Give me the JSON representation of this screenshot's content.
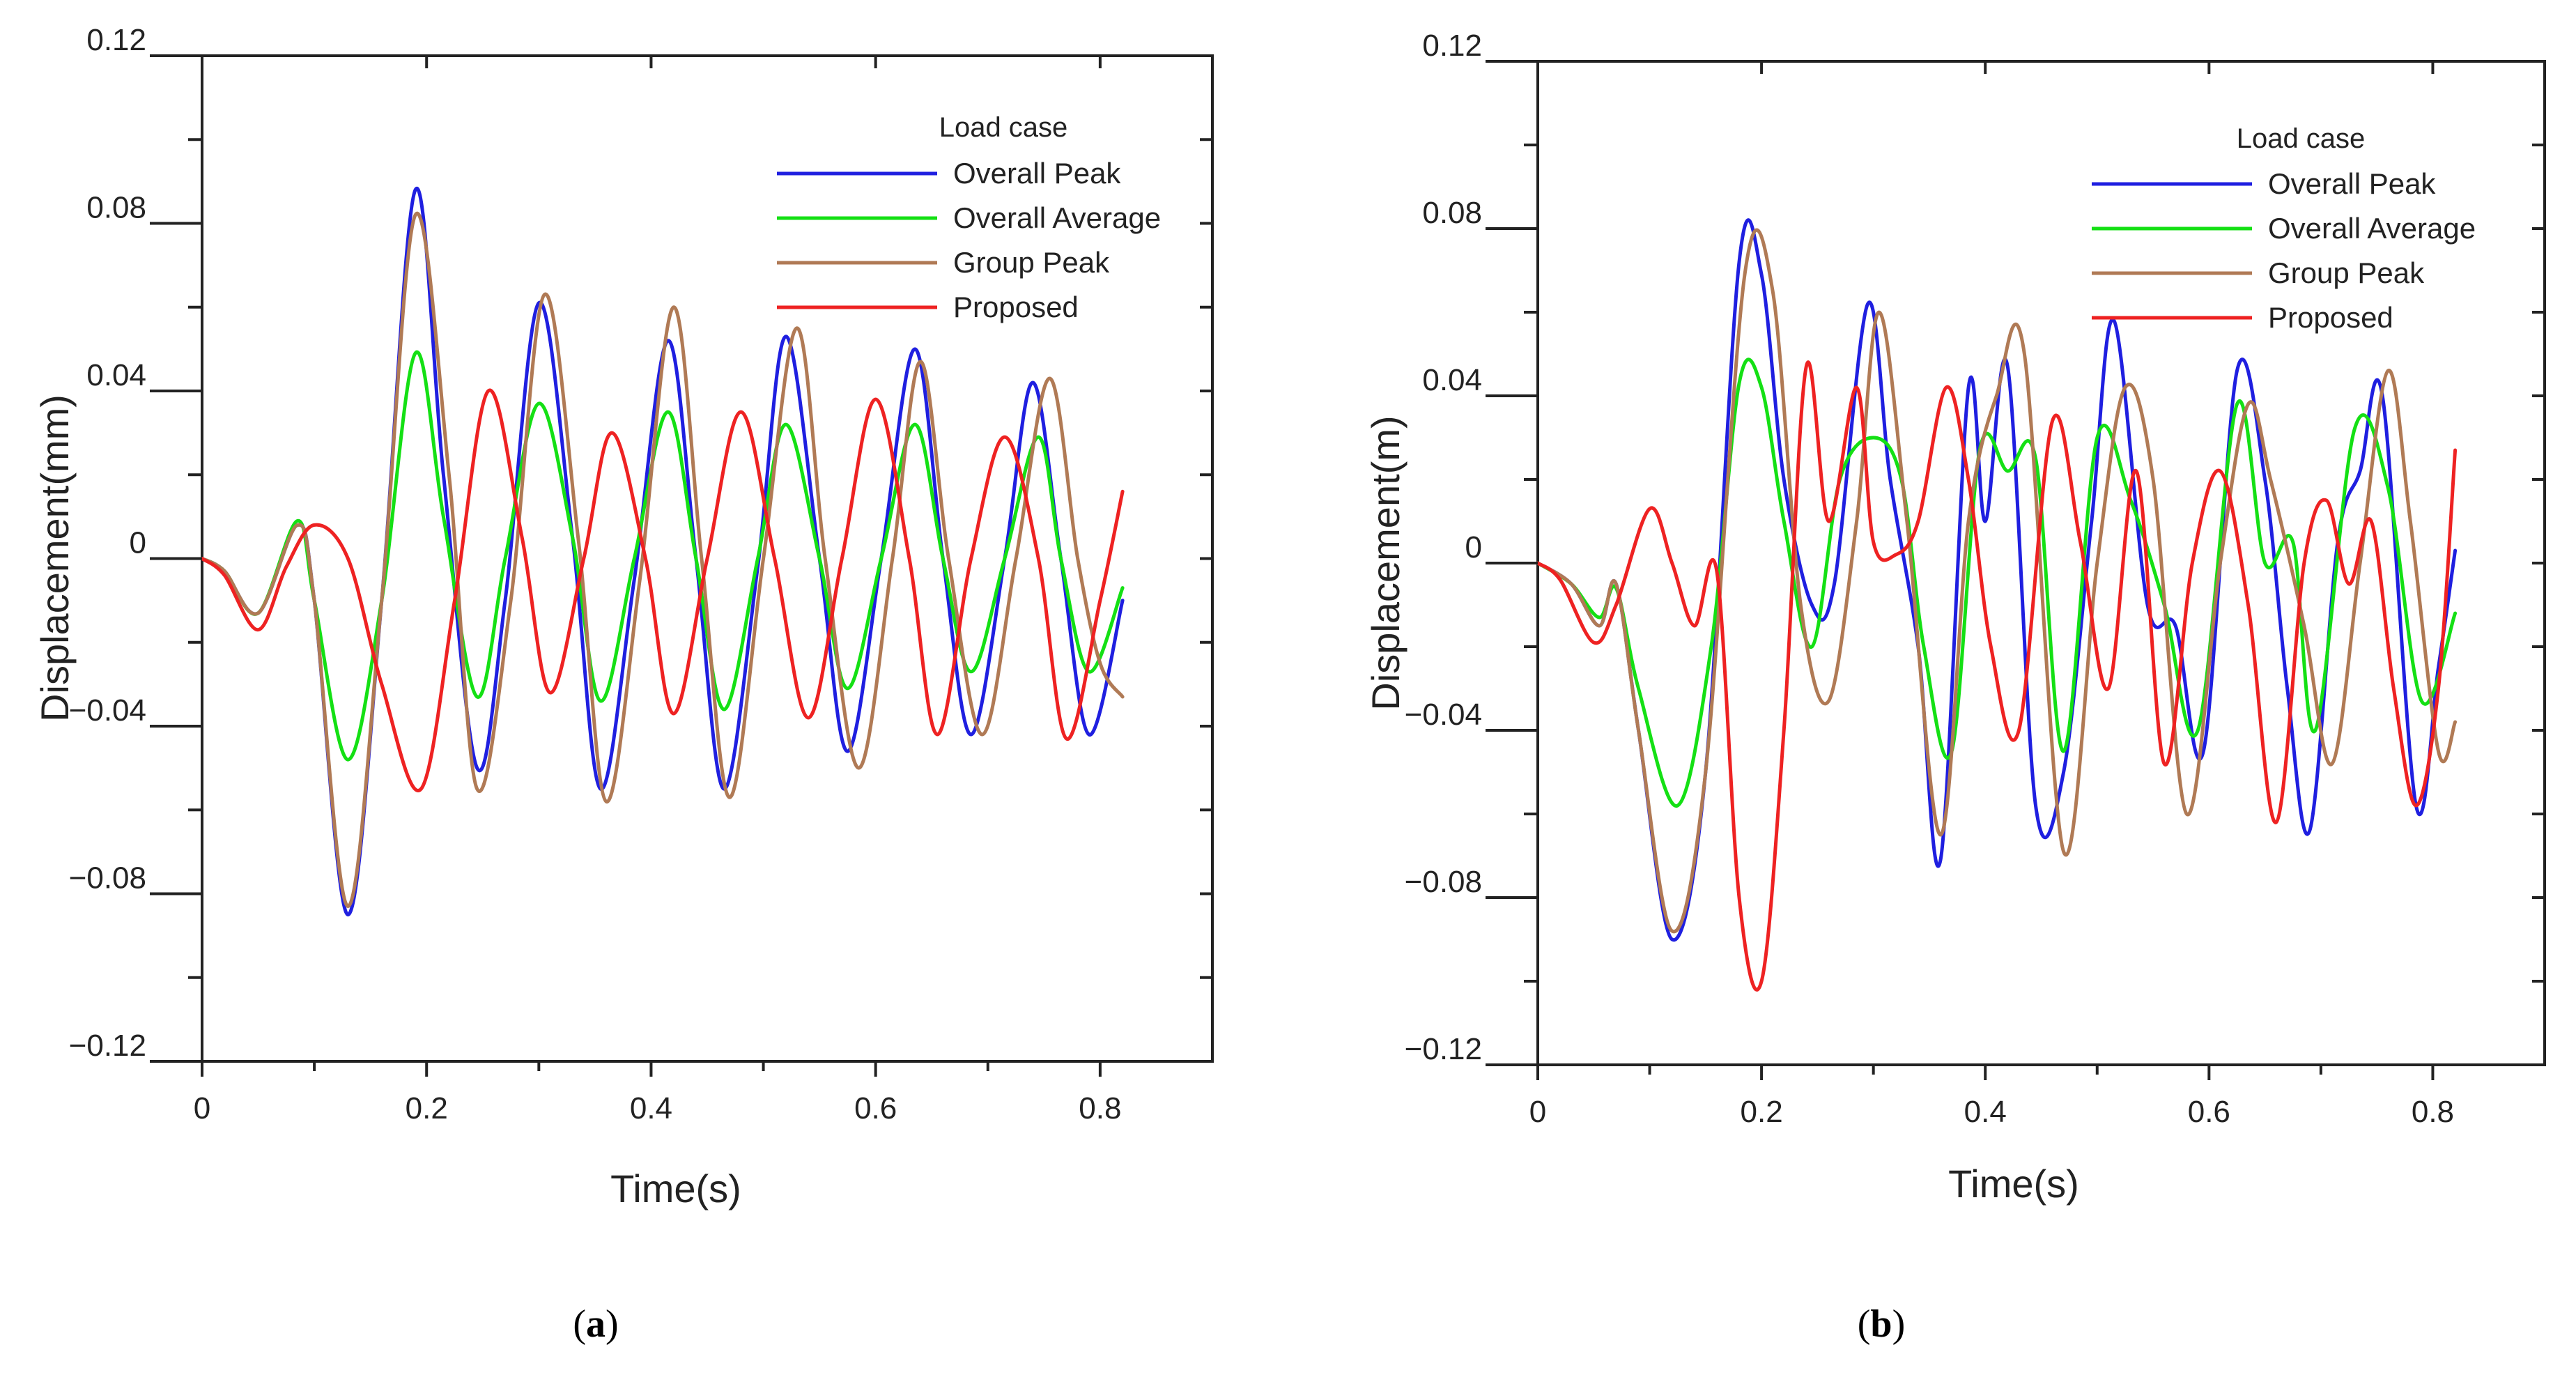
{
  "colors": {
    "Overall Peak": "#1f1fe0",
    "Overall Average": "#14e014",
    "Group Peak": "#b07a55",
    "Proposed": "#ee2222",
    "axis": "#222222"
  },
  "chart_data": [
    {
      "type": "line",
      "panel": "a",
      "caption": "a",
      "xlabel": "Time(s)",
      "ylabel": "Displacement(mm)",
      "xlim": [
        0,
        0.9
      ],
      "ylim": [
        -0.12,
        0.12
      ],
      "xticks": [
        0,
        0.2,
        0.4,
        0.6,
        0.8
      ],
      "xtick_labels": [
        "0",
        "0.2",
        "0.4",
        "0.6",
        "0.8"
      ],
      "yticks": [
        0.12,
        0.08,
        0.04,
        0,
        -0.04,
        -0.08,
        -0.12
      ],
      "ytick_labels": [
        "0.12",
        "0.08",
        "0.04",
        "0",
        "−0.04",
        "−0.08",
        "−0.12"
      ],
      "legend_title": "Load case",
      "legend_position": "top-right",
      "series": [
        {
          "name": "Overall Peak",
          "x": [
            0,
            0.02,
            0.05,
            0.085,
            0.1,
            0.13,
            0.16,
            0.19,
            0.215,
            0.245,
            0.27,
            0.3,
            0.33,
            0.355,
            0.385,
            0.415,
            0.44,
            0.465,
            0.495,
            0.52,
            0.55,
            0.575,
            0.605,
            0.635,
            0.66,
            0.685,
            0.715,
            0.74,
            0.765,
            0.79,
            0.82
          ],
          "y": [
            0,
            -0.003,
            -0.013,
            0.008,
            -0.01,
            -0.085,
            -0.01,
            0.088,
            0.02,
            -0.05,
            -0.01,
            0.061,
            0.005,
            -0.055,
            -0.005,
            0.052,
            0.0,
            -0.055,
            -0.002,
            0.053,
            0.0,
            -0.046,
            0.0,
            0.05,
            0.0,
            -0.042,
            0.0,
            0.042,
            0.0,
            -0.042,
            -0.01
          ]
        },
        {
          "name": "Overall Average",
          "x": [
            0,
            0.02,
            0.05,
            0.085,
            0.1,
            0.13,
            0.16,
            0.19,
            0.215,
            0.245,
            0.27,
            0.3,
            0.33,
            0.355,
            0.385,
            0.415,
            0.44,
            0.465,
            0.495,
            0.52,
            0.55,
            0.575,
            0.605,
            0.635,
            0.66,
            0.685,
            0.715,
            0.745,
            0.765,
            0.79,
            0.82
          ],
          "y": [
            0,
            -0.003,
            -0.013,
            0.009,
            -0.01,
            -0.048,
            -0.01,
            0.049,
            0.01,
            -0.033,
            0.0,
            0.037,
            0.005,
            -0.034,
            0.0,
            0.035,
            0.0,
            -0.036,
            0.0,
            0.032,
            0.0,
            -0.031,
            0.0,
            0.032,
            0.0,
            -0.027,
            0.0,
            0.029,
            0.0,
            -0.027,
            -0.007
          ]
        },
        {
          "name": "Group Peak",
          "x": [
            0,
            0.02,
            0.05,
            0.085,
            0.1,
            0.13,
            0.16,
            0.19,
            0.22,
            0.245,
            0.275,
            0.305,
            0.335,
            0.36,
            0.39,
            0.42,
            0.445,
            0.47,
            0.5,
            0.53,
            0.555,
            0.585,
            0.615,
            0.64,
            0.665,
            0.695,
            0.725,
            0.755,
            0.78,
            0.8,
            0.82
          ],
          "y": [
            0,
            -0.003,
            -0.013,
            0.008,
            -0.01,
            -0.083,
            -0.01,
            0.082,
            0.02,
            -0.055,
            -0.01,
            0.063,
            0.005,
            -0.058,
            -0.005,
            0.06,
            0.0,
            -0.057,
            0.0,
            0.055,
            0.0,
            -0.05,
            0.0,
            0.047,
            0.0,
            -0.042,
            0.0,
            0.043,
            0.0,
            -0.025,
            -0.033
          ]
        },
        {
          "name": "Proposed",
          "x": [
            0,
            0.02,
            0.05,
            0.075,
            0.1,
            0.13,
            0.16,
            0.195,
            0.225,
            0.255,
            0.285,
            0.31,
            0.34,
            0.365,
            0.395,
            0.42,
            0.45,
            0.48,
            0.51,
            0.54,
            0.57,
            0.6,
            0.63,
            0.655,
            0.685,
            0.715,
            0.745,
            0.77,
            0.8,
            0.82
          ],
          "y": [
            0,
            -0.004,
            -0.017,
            -0.002,
            0.008,
            0.0,
            -0.03,
            -0.055,
            -0.01,
            0.04,
            0.005,
            -0.032,
            0.0,
            0.03,
            0.0,
            -0.037,
            0.0,
            0.035,
            0.0,
            -0.038,
            0.0,
            0.038,
            0.0,
            -0.042,
            0.0,
            0.029,
            0.0,
            -0.043,
            -0.01,
            0.016
          ]
        }
      ]
    },
    {
      "type": "line",
      "panel": "b",
      "caption": "b",
      "xlabel": "Time(s)",
      "ylabel": "Displacement(m)",
      "xlim": [
        0,
        0.9
      ],
      "ylim": [
        -0.12,
        0.12
      ],
      "xticks": [
        0,
        0.2,
        0.4,
        0.6,
        0.8
      ],
      "xtick_labels": [
        "0",
        "0.2",
        "0.4",
        "0.6",
        "0.8"
      ],
      "yticks": [
        0.12,
        0.08,
        0.04,
        0,
        -0.04,
        -0.08,
        -0.12
      ],
      "ytick_labels": [
        "0.12",
        "0.08",
        "0.04",
        "0",
        "−0.04",
        "−0.08",
        "−0.12"
      ],
      "legend_title": "Load case",
      "legend_position": "top-right",
      "series": [
        {
          "name": "Overall Peak",
          "x": [
            0,
            0.03,
            0.055,
            0.07,
            0.09,
            0.12,
            0.15,
            0.18,
            0.2,
            0.22,
            0.245,
            0.265,
            0.295,
            0.315,
            0.34,
            0.36,
            0.385,
            0.4,
            0.42,
            0.445,
            0.47,
            0.495,
            0.515,
            0.545,
            0.57,
            0.595,
            0.625,
            0.65,
            0.67,
            0.69,
            0.715,
            0.735,
            0.755,
            0.785,
            0.805,
            0.82
          ],
          "y": [
            0,
            -0.005,
            -0.015,
            -0.005,
            -0.04,
            -0.09,
            -0.05,
            0.072,
            0.069,
            0.02,
            -0.01,
            -0.005,
            0.062,
            0.02,
            -0.02,
            -0.071,
            0.042,
            0.01,
            0.047,
            -0.058,
            -0.05,
            0.01,
            0.058,
            -0.01,
            -0.015,
            -0.045,
            0.046,
            0.02,
            -0.03,
            -0.064,
            0.005,
            0.022,
            0.04,
            -0.058,
            -0.025,
            0.003
          ]
        },
        {
          "name": "Overall Average",
          "x": [
            0,
            0.03,
            0.055,
            0.07,
            0.09,
            0.125,
            0.155,
            0.18,
            0.2,
            0.22,
            0.245,
            0.27,
            0.3,
            0.325,
            0.345,
            0.37,
            0.395,
            0.42,
            0.445,
            0.47,
            0.5,
            0.53,
            0.56,
            0.59,
            0.625,
            0.65,
            0.675,
            0.695,
            0.73,
            0.76,
            0.79,
            0.82
          ],
          "y": [
            0,
            -0.005,
            -0.013,
            -0.006,
            -0.03,
            -0.058,
            -0.02,
            0.043,
            0.042,
            0.01,
            -0.02,
            0.02,
            0.03,
            0.02,
            -0.02,
            -0.045,
            0.027,
            0.022,
            0.025,
            -0.045,
            0.03,
            0.015,
            -0.01,
            -0.04,
            0.038,
            0.0,
            0.005,
            -0.04,
            0.032,
            0.018,
            -0.033,
            -0.012
          ]
        },
        {
          "name": "Group Peak",
          "x": [
            0,
            0.03,
            0.055,
            0.07,
            0.09,
            0.12,
            0.15,
            0.185,
            0.21,
            0.235,
            0.26,
            0.285,
            0.305,
            0.33,
            0.36,
            0.385,
            0.41,
            0.435,
            0.47,
            0.5,
            0.525,
            0.55,
            0.58,
            0.61,
            0.635,
            0.655,
            0.685,
            0.71,
            0.735,
            0.76,
            0.78,
            0.805,
            0.82
          ],
          "y": [
            0,
            -0.005,
            -0.015,
            -0.005,
            -0.04,
            -0.088,
            -0.05,
            0.069,
            0.065,
            -0.01,
            -0.033,
            0.01,
            0.06,
            0.01,
            -0.065,
            0.01,
            0.04,
            0.05,
            -0.069,
            0.0,
            0.042,
            0.02,
            -0.06,
            0.0,
            0.038,
            0.02,
            -0.015,
            -0.048,
            0.0,
            0.046,
            0.01,
            -0.045,
            -0.038
          ]
        },
        {
          "name": "Proposed",
          "x": [
            0,
            0.02,
            0.05,
            0.07,
            0.1,
            0.12,
            0.14,
            0.16,
            0.18,
            0.2,
            0.22,
            0.24,
            0.26,
            0.285,
            0.3,
            0.32,
            0.34,
            0.365,
            0.385,
            0.405,
            0.43,
            0.46,
            0.485,
            0.51,
            0.535,
            0.56,
            0.585,
            0.61,
            0.635,
            0.66,
            0.685,
            0.705,
            0.725,
            0.745,
            0.765,
            0.785,
            0.805,
            0.82
          ],
          "y": [
            0,
            -0.004,
            -0.019,
            -0.01,
            0.013,
            0.0,
            -0.015,
            -0.002,
            -0.08,
            -0.1,
            -0.04,
            0.047,
            0.01,
            0.042,
            0.005,
            0.002,
            0.01,
            0.042,
            0.02,
            -0.02,
            -0.04,
            0.034,
            0.005,
            -0.03,
            0.022,
            -0.048,
            0.0,
            0.022,
            -0.01,
            -0.062,
            0.0,
            0.015,
            -0.005,
            0.01,
            -0.03,
            -0.058,
            -0.03,
            0.027
          ]
        }
      ]
    }
  ]
}
